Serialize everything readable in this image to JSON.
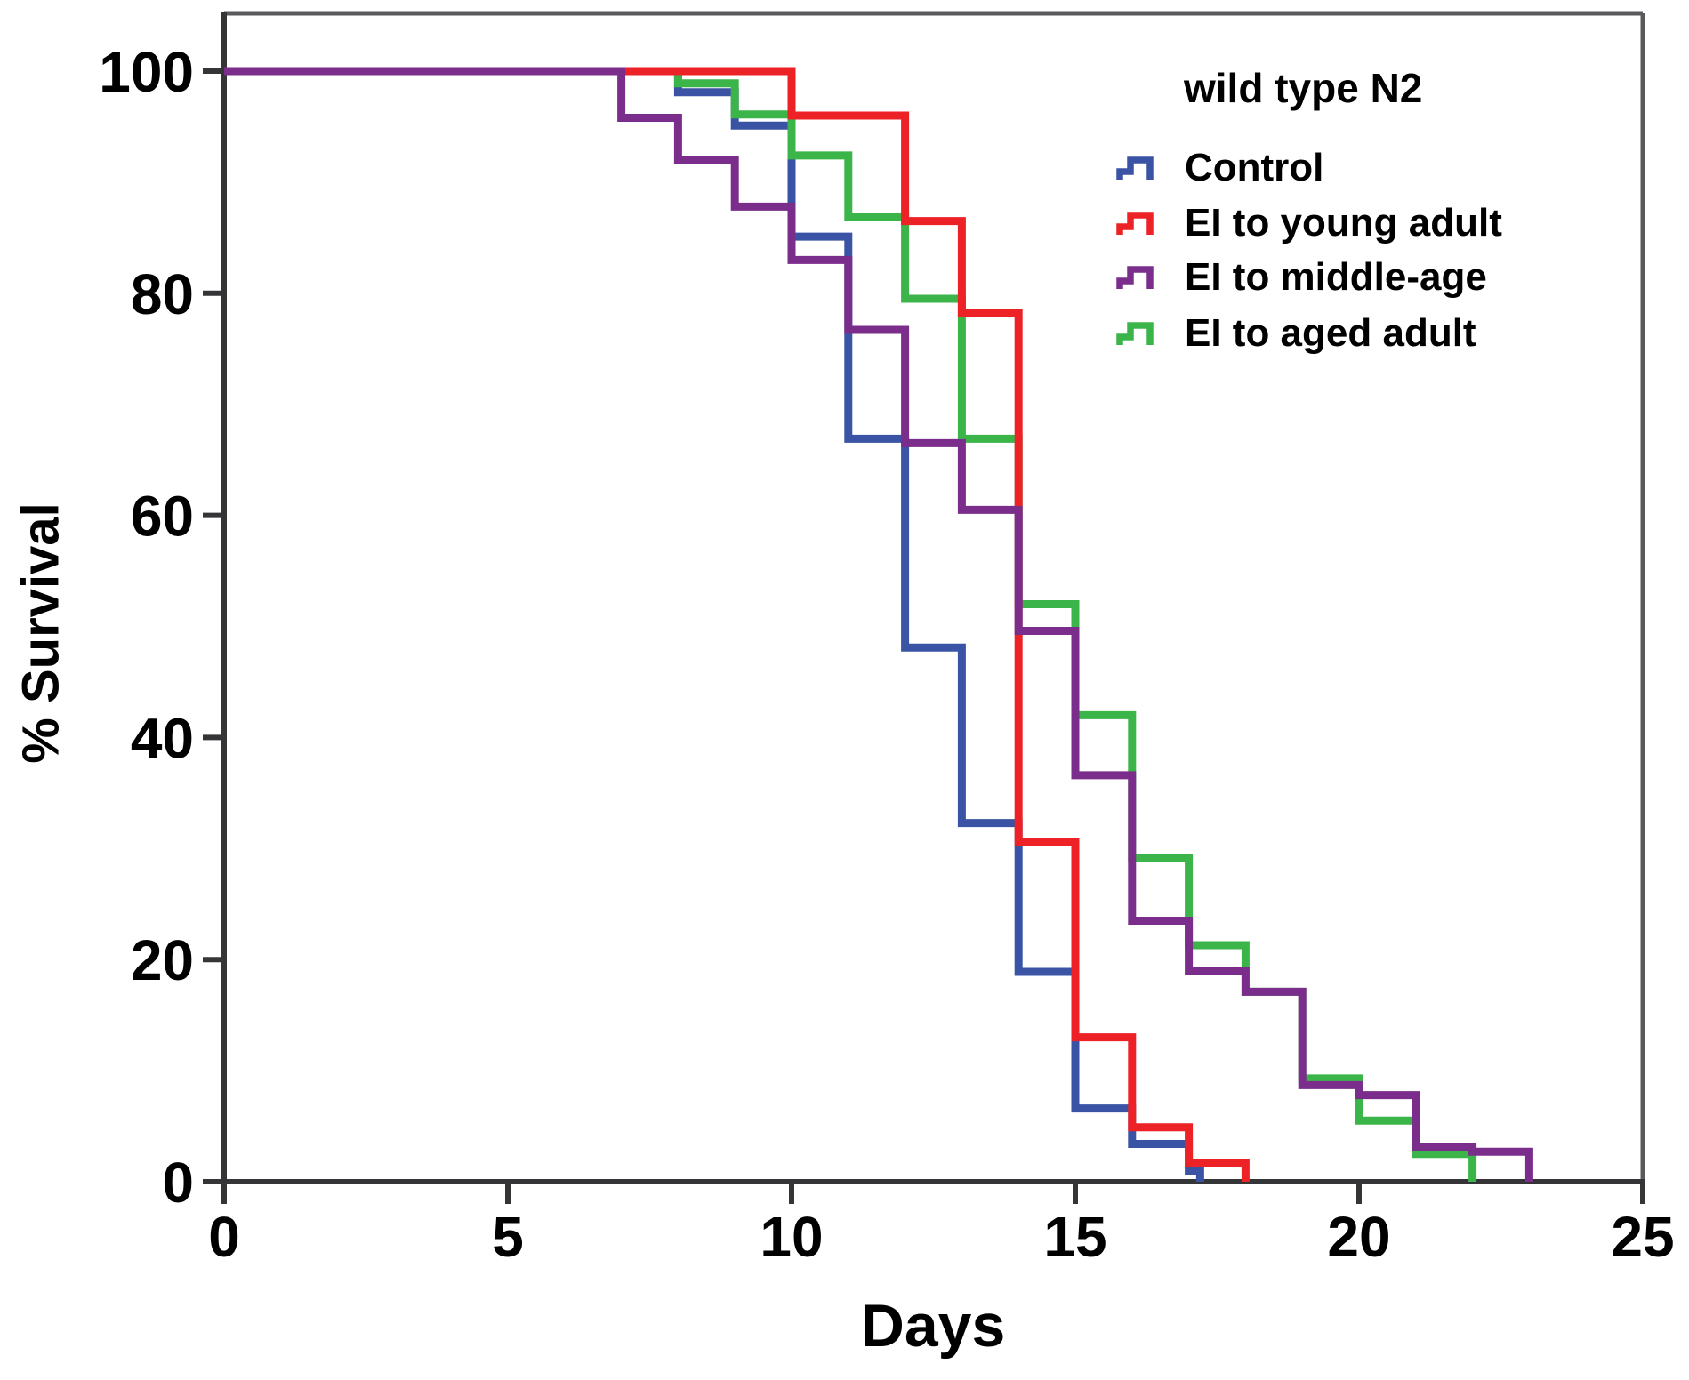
{
  "chart_data": {
    "type": "line",
    "subtype": "kaplan-meier-step-survival",
    "title": "wild type N2",
    "xlabel": "Days",
    "ylabel": "% Survival",
    "xlim": [
      0,
      25
    ],
    "ylim": [
      0,
      100
    ],
    "x_ticks": [
      "0",
      "5",
      "10",
      "15",
      "20",
      "25"
    ],
    "x_tick_values": [
      0,
      5,
      10,
      15,
      20,
      25
    ],
    "y_ticks": [
      "0",
      "20",
      "40",
      "60",
      "80",
      "100"
    ],
    "y_tick_values": [
      0,
      20,
      40,
      60,
      80,
      100
    ],
    "grid": false,
    "legend_position": "top-right-inside",
    "series": [
      {
        "name": "Control",
        "color": "#3A53A4",
        "points": [
          [
            0,
            100
          ],
          [
            8,
            98.1
          ],
          [
            9,
            95.1
          ],
          [
            10,
            85.1
          ],
          [
            11,
            66.9
          ],
          [
            12,
            48.1
          ],
          [
            13,
            32.3
          ],
          [
            14,
            18.9
          ],
          [
            15,
            6.6
          ],
          [
            16,
            3.4
          ],
          [
            17,
            1.0
          ],
          [
            17.2,
            0
          ]
        ]
      },
      {
        "name": "EI to young adult",
        "color": "#EC2227",
        "points": [
          [
            0,
            100
          ],
          [
            10,
            96
          ],
          [
            12,
            86.5
          ],
          [
            13,
            78.2
          ],
          [
            14,
            30.6
          ],
          [
            15,
            13
          ],
          [
            16,
            4.9
          ],
          [
            17,
            1.7
          ],
          [
            18,
            0
          ]
        ]
      },
      {
        "name": "EI to middle-age",
        "color": "#7B2D8B",
        "points": [
          [
            0,
            100
          ],
          [
            7,
            95.8
          ],
          [
            8,
            92
          ],
          [
            9,
            87.8
          ],
          [
            10,
            83
          ],
          [
            11,
            76.7
          ],
          [
            12,
            66.5
          ],
          [
            13,
            60.5
          ],
          [
            14,
            49.6
          ],
          [
            15,
            36.6
          ],
          [
            16,
            23.5
          ],
          [
            17,
            19
          ],
          [
            18,
            17.1
          ],
          [
            19,
            8.7
          ],
          [
            20,
            7.8
          ],
          [
            21,
            3.1
          ],
          [
            22,
            2.7
          ],
          [
            23,
            0
          ]
        ]
      },
      {
        "name": "EI to aged adult",
        "color": "#3BB54A",
        "points": [
          [
            0,
            100
          ],
          [
            8,
            98.9
          ],
          [
            9,
            96.1
          ],
          [
            10,
            92.4
          ],
          [
            11,
            86.9
          ],
          [
            12,
            79.5
          ],
          [
            13,
            66.9
          ],
          [
            14,
            52
          ],
          [
            15,
            42
          ],
          [
            16,
            29.1
          ],
          [
            17,
            21.3
          ],
          [
            18,
            17.1
          ],
          [
            19,
            9.3
          ],
          [
            20,
            5.5
          ],
          [
            21,
            2.5
          ],
          [
            22,
            0
          ]
        ]
      }
    ],
    "draw_order": [
      "Control",
      "EI to aged adult",
      "EI to young adult",
      "EI to middle-age"
    ]
  },
  "colors": {
    "axis": "#353537",
    "frame": "#5A5A5C",
    "text": "#000000",
    "background": "#ffffff"
  }
}
